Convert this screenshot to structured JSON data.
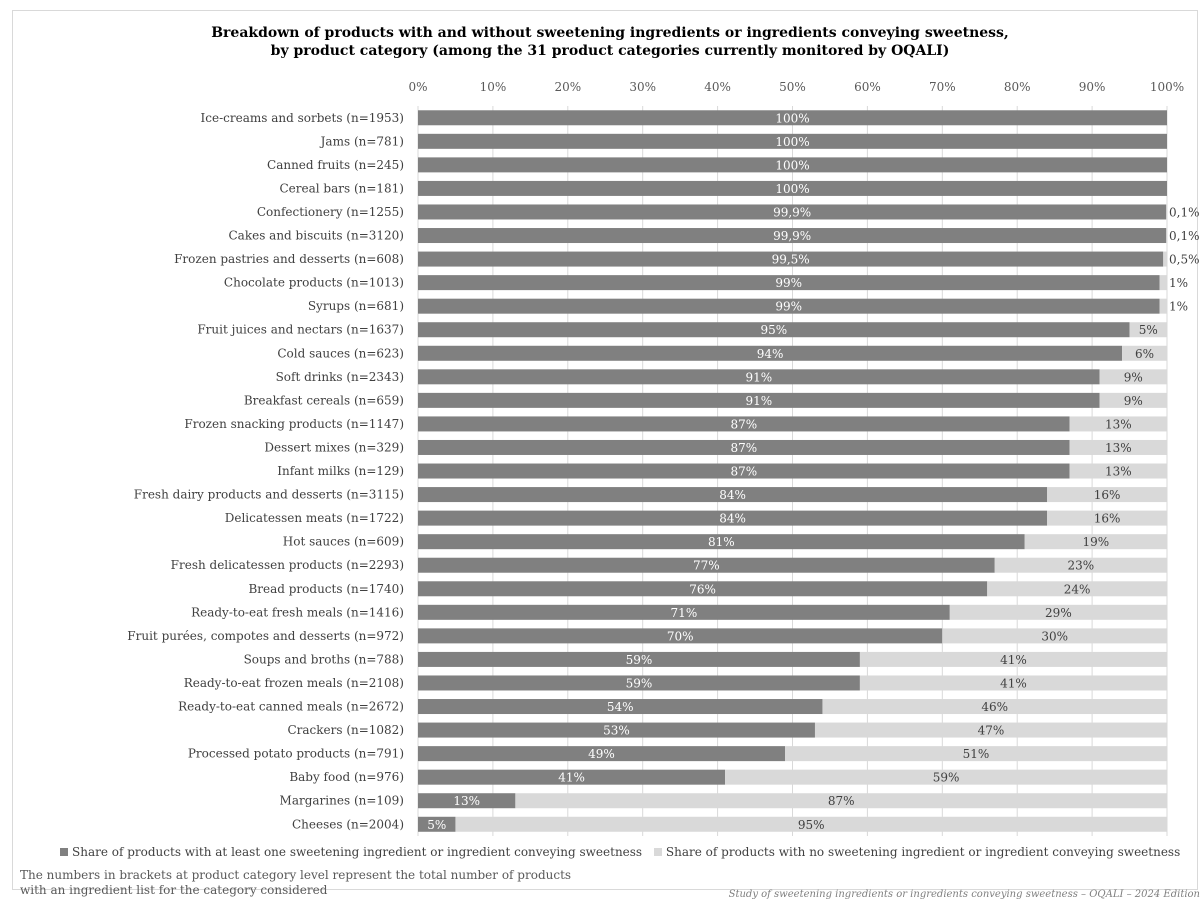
{
  "chart_data": {
    "type": "bar",
    "orientation": "horizontal",
    "stacked": true,
    "title_line1": "Breakdown of products with and without sweetening ingredients or ingredients conveying sweetness,",
    "title_line2": "by product category (among the 31 product categories currently monitored by OQALI)",
    "x_ticks": [
      "0%",
      "10%",
      "20%",
      "30%",
      "40%",
      "50%",
      "60%",
      "70%",
      "80%",
      "90%",
      "100%"
    ],
    "xlim": [
      0,
      100
    ],
    "colors": {
      "with": "#808080",
      "without": "#d9d9d9"
    },
    "categories": [
      "Ice-creams and sorbets (n=1953)",
      "Jams (n=781)",
      "Canned fruits (n=245)",
      "Cereal bars (n=181)",
      "Confectionery (n=1255)",
      "Cakes and biscuits (n=3120)",
      "Frozen pastries and desserts (n=608)",
      "Chocolate products (n=1013)",
      "Syrups (n=681)",
      "Fruit juices and nectars (n=1637)",
      "Cold sauces (n=623)",
      "Soft drinks (n=2343)",
      "Breakfast cereals (n=659)",
      "Frozen snacking products (n=1147)",
      "Dessert mixes (n=329)",
      "Infant milks (n=129)",
      "Fresh dairy products and desserts (n=3115)",
      "Delicatessen meats (n=1722)",
      "Hot sauces (n=609)",
      "Fresh delicatessen products (n=2293)",
      "Bread products (n=1740)",
      "Ready-to-eat fresh meals (n=1416)",
      "Fruit purées, compotes and desserts (n=972)",
      "Soups and broths (n=788)",
      "Ready-to-eat frozen meals (n=2108)",
      "Ready-to-eat canned meals (n=2672)",
      "Crackers (n=1082)",
      "Processed potato products (n=791)",
      "Baby food (n=976)",
      "Margarines (n=109)",
      "Cheeses (n=2004)"
    ],
    "series": [
      {
        "name": "Share of products with at least one sweetening ingredient or ingredient conveying sweetness",
        "values": [
          100,
          100,
          100,
          100,
          99.9,
          99.9,
          99.5,
          99,
          99,
          95,
          94,
          91,
          91,
          87,
          87,
          87,
          84,
          84,
          81,
          77,
          76,
          71,
          70,
          59,
          59,
          54,
          53,
          49,
          41,
          13,
          5
        ],
        "labels": [
          "100%",
          "100%",
          "100%",
          "100%",
          "99,9%",
          "99,9%",
          "99,5%",
          "99%",
          "99%",
          "95%",
          "94%",
          "91%",
          "91%",
          "87%",
          "87%",
          "87%",
          "84%",
          "84%",
          "81%",
          "77%",
          "76%",
          "71%",
          "70%",
          "59%",
          "59%",
          "54%",
          "53%",
          "49%",
          "41%",
          "13%",
          "5%"
        ]
      },
      {
        "name": "Share of products with no sweetening ingredient or ingredient conveying sweetness",
        "values": [
          0,
          0,
          0,
          0,
          0.1,
          0.1,
          0.5,
          1,
          1,
          5,
          6,
          9,
          9,
          13,
          13,
          13,
          16,
          16,
          19,
          23,
          24,
          29,
          30,
          41,
          41,
          46,
          47,
          51,
          59,
          87,
          95
        ],
        "labels": [
          "",
          "",
          "",
          "",
          "0,1%",
          "0,1%",
          "0,5%",
          "1%",
          "1%",
          "5%",
          "6%",
          "9%",
          "9%",
          "13%",
          "13%",
          "13%",
          "16%",
          "16%",
          "19%",
          "23%",
          "24%",
          "29%",
          "30%",
          "41%",
          "41%",
          "46%",
          "47%",
          "51%",
          "59%",
          "87%",
          "95%"
        ]
      }
    ],
    "legend_position": "bottom",
    "grid": true
  },
  "legend": {
    "with_label": "Share of products with at least one sweetening ingredient or ingredient conveying sweetness",
    "without_label": "Share of products with no sweetening ingredient or ingredient conveying sweetness"
  },
  "footnote": {
    "line1": "The numbers in brackets at product category level represent the total number of products",
    "line2": "with an ingredient list for the category considered"
  },
  "source": "Study of sweetening ingredients or ingredients conveying sweetness – OQALI – 2024 Edition"
}
